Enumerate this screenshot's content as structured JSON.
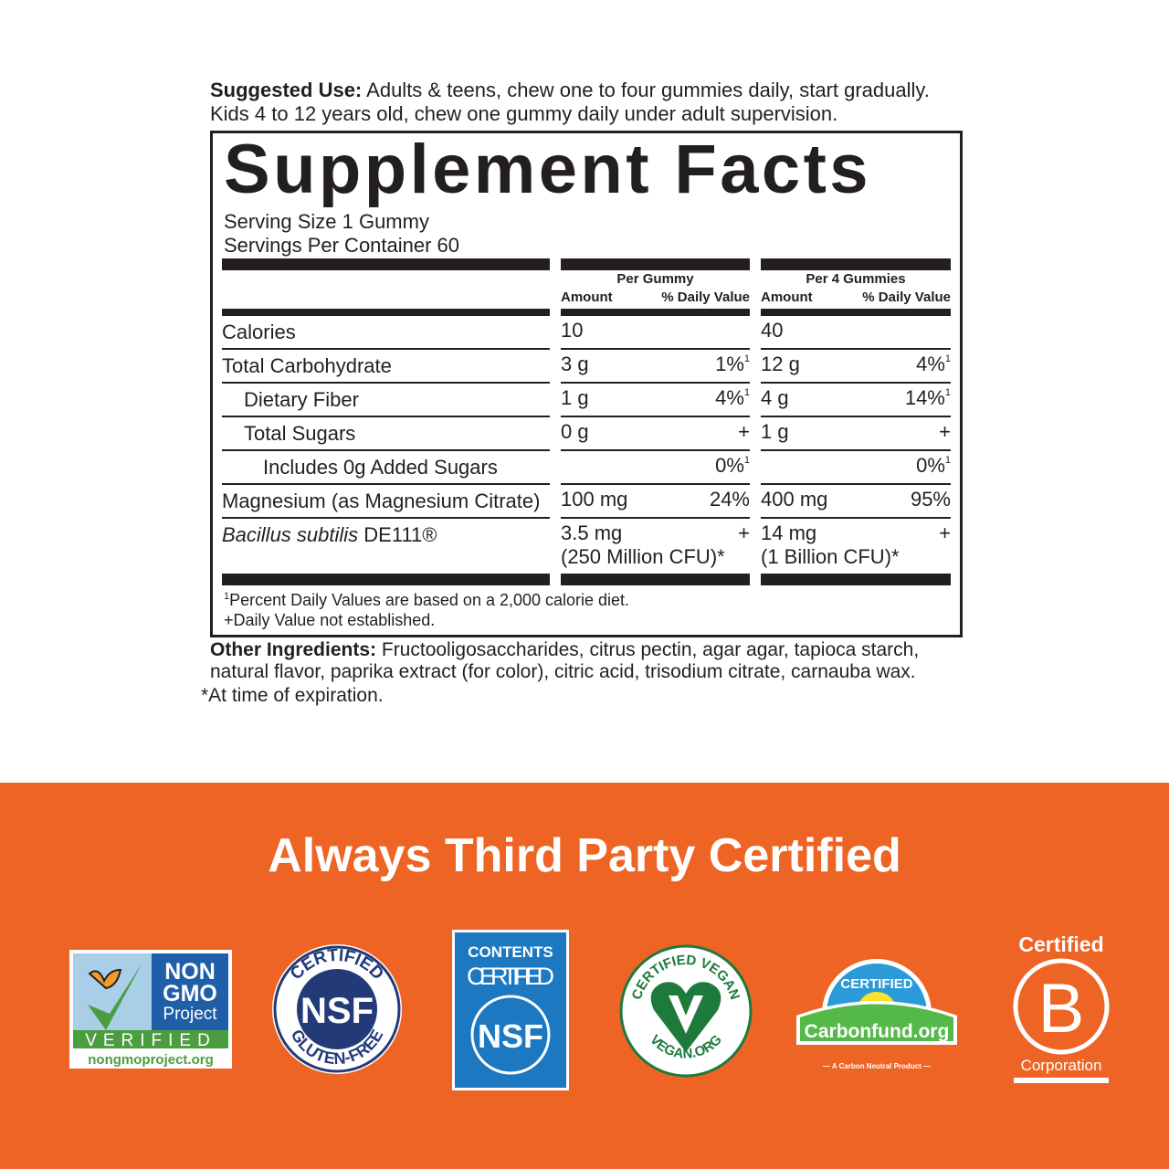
{
  "suggested_use": {
    "label": "Suggested Use:",
    "line1": " Adults & teens, chew one to four gummies daily, start gradually.",
    "line2": "Kids 4 to 12 years old, chew one gummy daily under adult supervision."
  },
  "facts": {
    "title": "Supplement Facts",
    "serving_size": "Serving Size 1 Gummy",
    "servings_per_container": "Servings Per Container 60",
    "col_groups": [
      "Per Gummy",
      "Per 4 Gummies"
    ],
    "col_amount": "Amount",
    "col_dv": "% Daily Value",
    "rows": [
      {
        "name": "Calories",
        "a1": "10",
        "d1": "",
        "a2": "40",
        "d2": ""
      },
      {
        "name": "Total Carbohydrate",
        "a1": "3 g",
        "d1": "1%",
        "s1": "1",
        "a2": "12 g",
        "d2": "4%",
        "s2": "1"
      },
      {
        "name": "Dietary Fiber",
        "a1": "1 g",
        "d1": "4%",
        "s1": "1",
        "a2": "4 g",
        "d2": "14%",
        "s2": "1"
      },
      {
        "name": "Total Sugars",
        "a1": "0 g",
        "d1": "+",
        "a2": "1 g",
        "d2": "+"
      },
      {
        "name": "Includes 0g Added Sugars",
        "a1": "",
        "d1": "0%",
        "s1": "1",
        "a2": "",
        "d2": "0%",
        "s2": "1"
      },
      {
        "name": "Magnesium (as Magnesium Citrate)",
        "a1": "100 mg",
        "d1": "24%",
        "a2": "400 mg",
        "d2": "95%"
      },
      {
        "name": "Bacillus subtilis",
        "name_suffix": " DE111®",
        "a1": "3.5 mg",
        "a1b": "(250 Million CFU)*",
        "d1": "+",
        "a2": "14 mg",
        "a2b": "(1 Billion CFU)*",
        "d2": "+"
      }
    ],
    "footnote1_mark": "1",
    "footnote1": "Percent Daily Values are based on a 2,000 calorie diet.",
    "footnote2": "+Daily Value not established."
  },
  "other_ingredients": {
    "label": "Other Ingredients:",
    "line1": " Fructooligosaccharides, citrus pectin, agar agar, tapioca starch,",
    "line2": "natural flavor, paprika extract (for color), citric acid, trisodium citrate, carnauba wax."
  },
  "expiration_note": "*At time of expiration.",
  "certifications": {
    "title": "Always Third Party Certified",
    "band_color": "#ee6424",
    "logos": [
      {
        "name": "non-gmo-project",
        "text": [
          "NON",
          "GMO",
          "Project",
          "VERIFIED",
          "nongmoproject.org"
        ]
      },
      {
        "name": "nsf-gluten-free",
        "text": [
          "CERTIFIED",
          "NSF",
          "GLUTEN-FREE"
        ]
      },
      {
        "name": "nsf-contents-certified",
        "text": [
          "CONTENTS",
          "CERTIFIED",
          "NSF"
        ]
      },
      {
        "name": "certified-vegan",
        "text": [
          "CERTIFIED VEGAN",
          "VEGAN.ORG"
        ]
      },
      {
        "name": "carbonfund",
        "text": [
          "CERTIFIED",
          "Carbonfund.org",
          "A Carbon Neutral Product"
        ]
      },
      {
        "name": "b-corp",
        "text": [
          "Certified",
          "B",
          "Corporation"
        ]
      }
    ]
  }
}
